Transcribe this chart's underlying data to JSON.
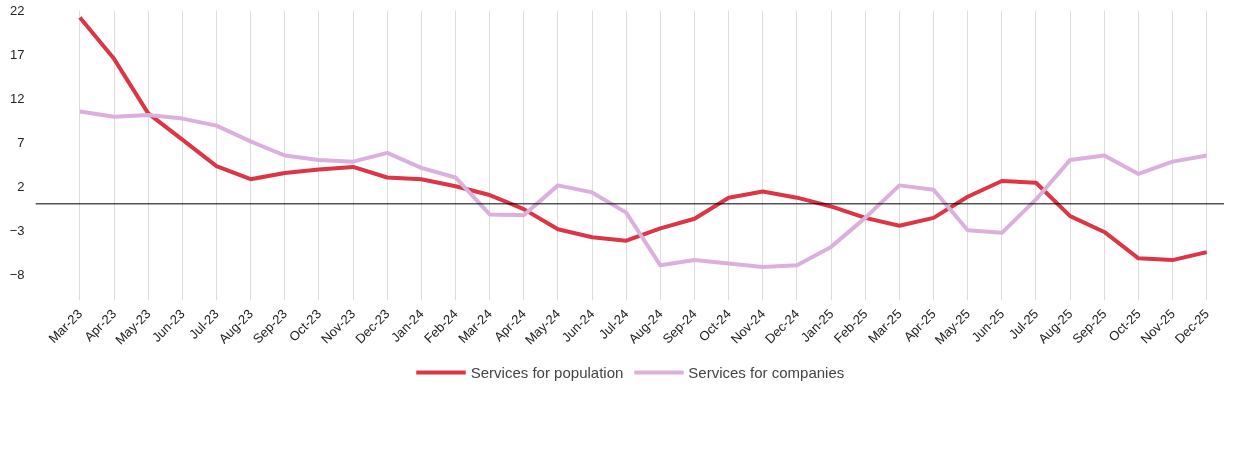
{
  "chart_data": {
    "type": "line",
    "categories": [
      "Mar-23",
      "Apr-23",
      "May-23",
      "Jun-23",
      "Jul-23",
      "Aug-23",
      "Sep-23",
      "Oct-23",
      "Nov-23",
      "Dec-23",
      "Jan-24",
      "Feb-24",
      "Mar-24",
      "Apr-24",
      "May-24",
      "Jun-24",
      "Jul-24",
      "Aug-24",
      "Sep-24",
      "Oct-24",
      "Nov-24",
      "Dec-24",
      "Jan-25",
      "Feb-25",
      "Mar-25",
      "Apr-25",
      "May-25",
      "Jun-25",
      "Jul-25",
      "Aug-25",
      "Sep-25",
      "Oct-25",
      "Nov-25",
      "Dec-25"
    ],
    "series": [
      {
        "name": "Services for population",
        "color": "#dc3545",
        "values": [
          21.2,
          16.5,
          10.3,
          7.3,
          4.3,
          2.8,
          3.5,
          3.9,
          4.2,
          3.0,
          2.8,
          2.0,
          1.0,
          -0.6,
          -2.9,
          -3.8,
          -4.2,
          -2.8,
          -1.7,
          0.7,
          1.4,
          0.7,
          -0.3,
          -1.6,
          -2.5,
          -1.6,
          0.8,
          2.6,
          2.4,
          -1.4,
          -3.2,
          -6.2,
          -6.4,
          -5.5
        ]
      },
      {
        "name": "Services for companies",
        "color": "#dcb0dc",
        "values": [
          10.5,
          9.9,
          10.1,
          9.7,
          8.9,
          7.1,
          5.5,
          5.0,
          4.8,
          5.8,
          4.1,
          3.0,
          -1.2,
          -1.3,
          2.1,
          1.3,
          -1.0,
          -7.0,
          -6.4,
          -6.8,
          -7.2,
          -7.0,
          -4.9,
          -1.6,
          2.1,
          1.6,
          -3.0,
          -3.3,
          0.5,
          5.0,
          5.5,
          3.4,
          4.8,
          5.5
        ]
      }
    ],
    "ylim": [
      -11,
      22
    ],
    "yticks": [
      22,
      17,
      12,
      7,
      2,
      -3,
      -8
    ],
    "ref_lines": [
      {
        "axis": "y",
        "value": 0,
        "color": "#000000"
      }
    ],
    "grid": "x",
    "legend": "bottom",
    "marker": "none",
    "line_style": "solid"
  }
}
